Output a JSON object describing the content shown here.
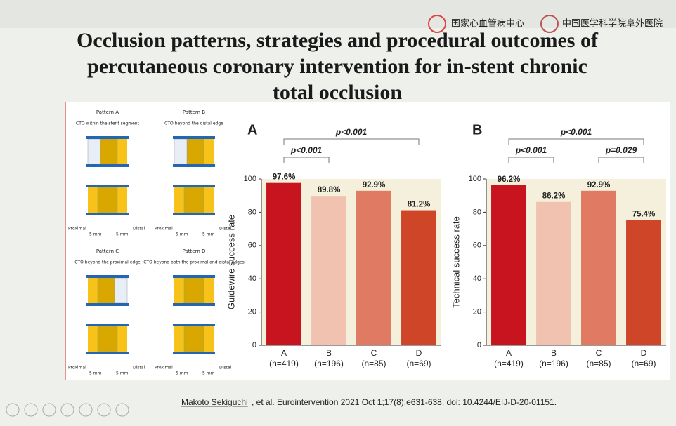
{
  "title_lines": [
    "Occlusion patterns, strategies and procedural outcomes of",
    "percutaneous coronary intervention for in-stent chronic",
    "total occlusion"
  ],
  "logos": [
    "国家心血管病中心",
    "中国医学科学院阜外医院"
  ],
  "diagram": {
    "patterns": [
      {
        "name": "Pattern A",
        "desc": "CTO within the stent segment"
      },
      {
        "name": "Pattern B",
        "desc": "CTO beyond the distal edge"
      },
      {
        "name": "Pattern C",
        "desc": "CTO beyond the proximal edge"
      },
      {
        "name": "Pattern D",
        "desc": "CTO beyond both the proximal and distal edges"
      }
    ],
    "proximal": "Proximal",
    "distal": "Distal",
    "length": "5 mm"
  },
  "chart_data": [
    {
      "type": "bar",
      "panel": "A",
      "ylabel": "Guidewire success rate",
      "categories": [
        "A",
        "B",
        "C",
        "D"
      ],
      "n_labels": [
        "(n=419)",
        "(n=196)",
        "(n=85)",
        "(n=69)"
      ],
      "values": [
        97.6,
        89.8,
        92.9,
        81.2
      ],
      "value_labels": [
        "97.6%",
        "89.8%",
        "92.9%",
        "81.2%"
      ],
      "colors": [
        "#c8141e",
        "#f2c2b0",
        "#e07a62",
        "#cf4528"
      ],
      "plot_background": "#f5f0dc",
      "ylim": [
        0,
        100
      ],
      "yticks": [
        0,
        20,
        40,
        60,
        80,
        100
      ],
      "brackets": [
        {
          "label": "p<0.001",
          "between": [
            "A",
            "D"
          ]
        },
        {
          "label": "p<0.001",
          "between": [
            "A",
            "B"
          ]
        }
      ]
    },
    {
      "type": "bar",
      "panel": "B",
      "ylabel": "Technical success rate",
      "categories": [
        "A",
        "B",
        "C",
        "D"
      ],
      "n_labels": [
        "(n=419)",
        "(n=196)",
        "(n=85)",
        "(n=69)"
      ],
      "values": [
        96.2,
        86.2,
        92.9,
        75.4
      ],
      "value_labels": [
        "96.2%",
        "86.2%",
        "92.9%",
        "75.4%"
      ],
      "colors": [
        "#c8141e",
        "#f2c2b0",
        "#e07a62",
        "#cf4528"
      ],
      "plot_background": "#f5f0dc",
      "ylim": [
        0,
        100
      ],
      "yticks": [
        0,
        20,
        40,
        60,
        80,
        100
      ],
      "brackets": [
        {
          "label": "p<0.001",
          "between": [
            "A",
            "D"
          ]
        },
        {
          "label": "p<0.001",
          "between": [
            "A",
            "B"
          ]
        },
        {
          "label": "p=0.029",
          "between": [
            "C",
            "D"
          ]
        }
      ]
    }
  ],
  "citation": {
    "author": "Makoto Sekiguchi",
    "rest": ", et al. Eurointervention 2021 Oct 1;17(8):e631-638.  doi: 10.4244/EIJ-D-20-01151."
  }
}
